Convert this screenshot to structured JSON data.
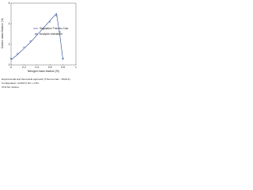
{
  "chart_data": {
    "type": "line",
    "y_label": "Carbon mass fraction (%)",
    "x_label": "Nitrogen mass fraction (%)",
    "x": [
      0,
      0.1,
      0.2,
      0.3,
      0.4,
      0.5,
      0.6,
      0.7,
      0.75,
      0.8
    ],
    "series": [
      {
        "name": "Simulation Thermo-Calc",
        "color": "#1f3f8f",
        "mode": "line",
        "values": [
          0.5,
          1.0,
          1.6,
          2.2,
          2.9,
          3.6,
          4.3,
          5.0,
          3.0,
          0.5
        ]
      },
      {
        "name": "Analysis resistance",
        "color": "#1f3f8f",
        "mode": "markers",
        "values": [
          0.6,
          1.1,
          1.7,
          2.3,
          3.0,
          3.5,
          4.2,
          4.8,
          3.2,
          0.6
        ]
      }
    ],
    "xlim": [
      0,
      1
    ],
    "xticks": [
      0,
      0.2,
      0.4,
      0.6,
      0.8,
      1
    ],
    "ylim": [
      0,
      6
    ],
    "yticks": [
      0,
      2,
      4,
      6
    ],
    "grid": false,
    "caption": [
      "Experimental and theoretical approach (Thermo-Calc - SSOL2)",
      "Configuration: at 600°C N2 + CH4",
      "CH4 N2 mixture"
    ]
  }
}
